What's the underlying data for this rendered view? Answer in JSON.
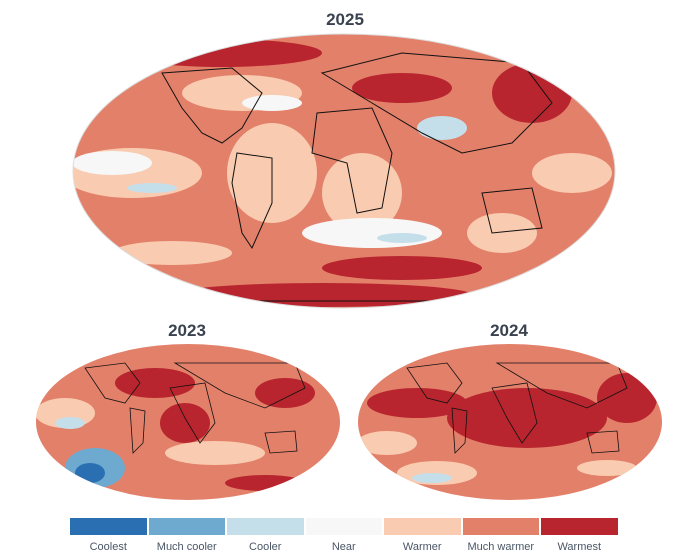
{
  "maps": [
    {
      "year": "2025"
    },
    {
      "year": "2023"
    },
    {
      "year": "2024"
    }
  ],
  "legend": [
    {
      "label": "Coolest",
      "color": "#2b6fb3"
    },
    {
      "label": "Much cooler",
      "color": "#6eaad0"
    },
    {
      "label": "Cooler",
      "color": "#c5dfea"
    },
    {
      "label": "Near",
      "color": "#f7f7f7"
    },
    {
      "label": "Warmer",
      "color": "#f9cbb0"
    },
    {
      "label": "Much warmer",
      "color": "#e3806a"
    },
    {
      "label": "Warmest",
      "color": "#b8252e"
    }
  ]
}
